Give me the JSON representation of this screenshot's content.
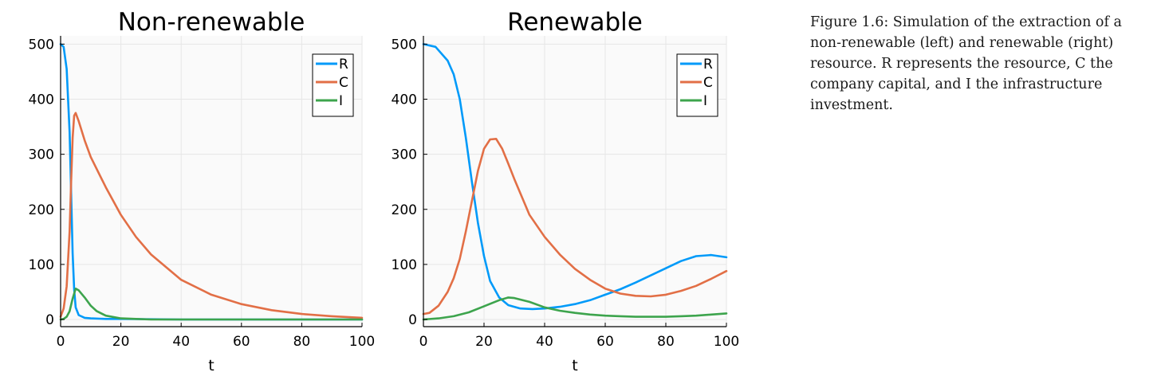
{
  "caption": "Figure 1.6: Simulation of the extraction of a non-renewable (left) and renewable (right) resource. R represents the resource, C the company capital, and I the infrastructure investment.",
  "colors": {
    "R": "#009af9",
    "C": "#e26f46",
    "I": "#3da44d"
  },
  "chart_data": [
    {
      "type": "line",
      "title": "Non-renewable",
      "xlabel": "t",
      "ylabel": "",
      "xlim": [
        0,
        100
      ],
      "ylim": [
        -13,
        515
      ],
      "xticks": [
        "0",
        "20",
        "40",
        "60",
        "80",
        "100"
      ],
      "yticks": [
        "0",
        "100",
        "200",
        "300",
        "400",
        "500"
      ],
      "grid": true,
      "legend": "top-right",
      "series": [
        {
          "name": "R",
          "x": [
            0,
            1,
            2,
            3,
            3.5,
            4,
            4.5,
            5,
            6,
            8,
            10,
            15,
            20,
            40,
            60,
            80,
            100
          ],
          "values": [
            500,
            495,
            455,
            340,
            230,
            120,
            55,
            22,
            8,
            3,
            2,
            1,
            1,
            0,
            0,
            0,
            0
          ]
        },
        {
          "name": "C",
          "x": [
            0,
            1,
            2,
            3,
            3.5,
            4,
            4.5,
            5,
            6,
            8,
            10,
            15,
            20,
            25,
            30,
            40,
            50,
            60,
            70,
            80,
            90,
            100
          ],
          "values": [
            5,
            20,
            60,
            160,
            250,
            330,
            370,
            375,
            360,
            325,
            295,
            240,
            190,
            150,
            118,
            72,
            45,
            28,
            17,
            10,
            6,
            3
          ]
        },
        {
          "name": "I",
          "x": [
            0,
            1,
            2,
            3,
            4,
            5,
            6,
            8,
            10,
            12,
            15,
            20,
            25,
            30,
            40,
            60,
            80,
            100
          ],
          "values": [
            0,
            1,
            5,
            15,
            38,
            56,
            53,
            40,
            25,
            15,
            7,
            2,
            1,
            0,
            0,
            0,
            0,
            0
          ]
        }
      ]
    },
    {
      "type": "line",
      "title": "Renewable",
      "xlabel": "t",
      "ylabel": "",
      "xlim": [
        0,
        100
      ],
      "ylim": [
        -13,
        515
      ],
      "xticks": [
        "0",
        "20",
        "40",
        "60",
        "80",
        "100"
      ],
      "yticks": [
        "0",
        "100",
        "200",
        "300",
        "400",
        "500"
      ],
      "grid": true,
      "legend": "top-right",
      "series": [
        {
          "name": "R",
          "x": [
            0,
            4,
            8,
            10,
            12,
            14,
            16,
            18,
            20,
            22,
            25,
            28,
            32,
            36,
            40,
            45,
            50,
            55,
            60,
            65,
            70,
            75,
            80,
            85,
            90,
            95,
            100
          ],
          "values": [
            500,
            495,
            470,
            445,
            400,
            330,
            250,
            175,
            115,
            70,
            40,
            26,
            20,
            19,
            20,
            23,
            28,
            35,
            45,
            55,
            67,
            80,
            93,
            106,
            115,
            117,
            113
          ]
        },
        {
          "name": "C",
          "x": [
            0,
            2,
            5,
            8,
            10,
            12,
            14,
            16,
            18,
            20,
            22,
            24,
            26,
            28,
            30,
            35,
            40,
            45,
            50,
            55,
            60,
            65,
            70,
            75,
            80,
            85,
            90,
            95,
            100
          ],
          "values": [
            10,
            12,
            25,
            50,
            75,
            110,
            160,
            215,
            270,
            310,
            327,
            328,
            310,
            283,
            255,
            190,
            150,
            118,
            92,
            72,
            56,
            47,
            43,
            42,
            45,
            52,
            61,
            74,
            88
          ]
        },
        {
          "name": "I",
          "x": [
            0,
            5,
            10,
            15,
            20,
            25,
            28,
            30,
            35,
            40,
            45,
            50,
            55,
            60,
            65,
            70,
            75,
            80,
            85,
            90,
            95,
            100
          ],
          "values": [
            0,
            2,
            6,
            13,
            24,
            35,
            40,
            39,
            32,
            22,
            16,
            12,
            9,
            7,
            6,
            5,
            5,
            5,
            6,
            7,
            9,
            11
          ]
        }
      ]
    }
  ]
}
